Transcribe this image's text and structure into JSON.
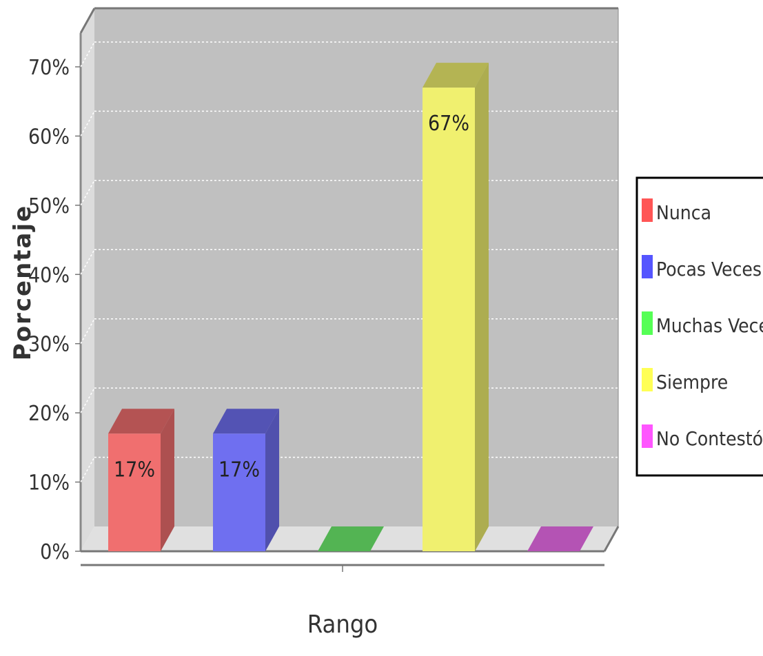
{
  "chart_data": {
    "type": "bar",
    "categories": [
      "Nunca",
      "Pocas Veces",
      "Muchas Veces",
      "Siempre",
      "No Contestó"
    ],
    "values": [
      17,
      17,
      0,
      67,
      0
    ],
    "data_labels": [
      "17%",
      "17%",
      "",
      "67%",
      ""
    ],
    "colors": [
      "#f06f6f",
      "#6f6ff0",
      "#6ff06f",
      "#f0f06f",
      "#f06ff0"
    ],
    "legend_colors": [
      "#ff5555",
      "#5555ff",
      "#55ff55",
      "#ffff55",
      "#ff55ff"
    ],
    "xlabel": "Rango",
    "ylabel": "Porcentaje",
    "ylim": [
      0,
      70
    ],
    "yticks": [
      "0%",
      "10%",
      "20%",
      "30%",
      "40%",
      "50%",
      "60%",
      "70%"
    ],
    "grid": true,
    "legend_position": "right",
    "style": "3d"
  }
}
